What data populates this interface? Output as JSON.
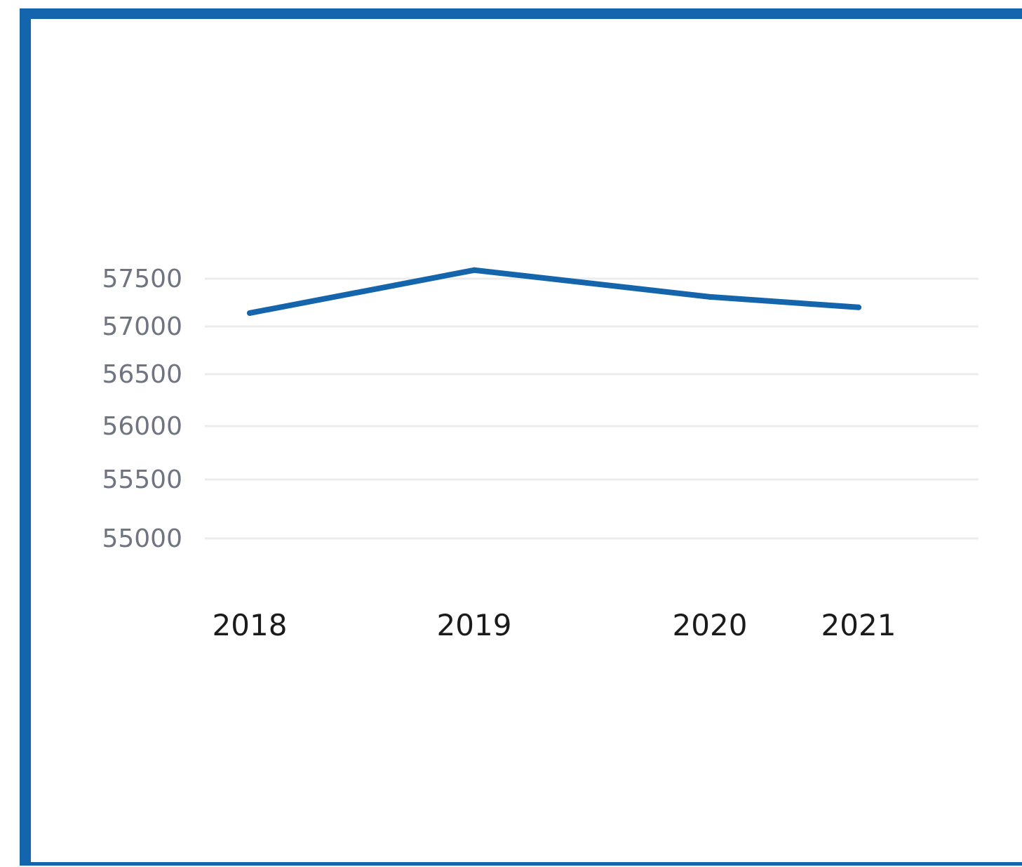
{
  "chart_data": {
    "type": "line",
    "title": "",
    "xlabel": "",
    "ylabel": "",
    "categories": [
      "2018",
      "2019",
      "2020",
      "2021"
    ],
    "series": [
      {
        "values": [
          57140,
          57590,
          57310,
          57200
        ]
      }
    ],
    "y_ticks": [
      "57500",
      "57000",
      "56500",
      "56000",
      "55500",
      "55000"
    ],
    "ylim": [
      55000,
      57500
    ],
    "grid": true,
    "legend": "none",
    "colors": {
      "line": "#1565ad",
      "frame": "#1565ad",
      "grid": "#ececec",
      "y_tick_text": "#6f7480",
      "x_tick_text": "#1b1b1b"
    }
  }
}
